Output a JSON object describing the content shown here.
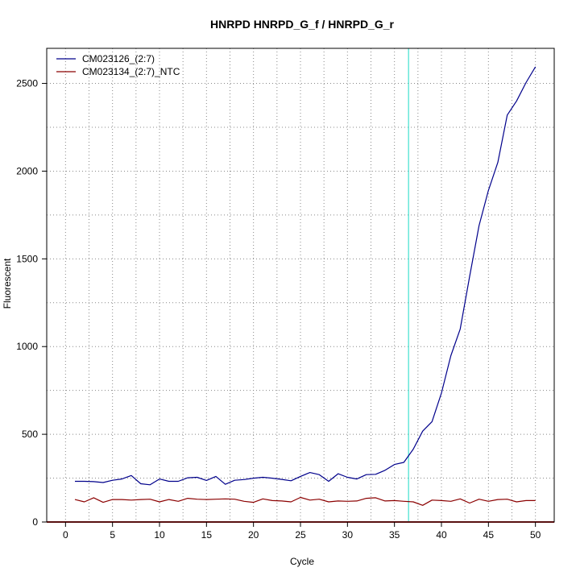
{
  "chart_data": {
    "type": "line",
    "title": "HNRPD  HNRPD_G_f / HNRPD_G_r",
    "xlabel": "Cycle",
    "ylabel": "Fluorescent",
    "xlim": [
      -2,
      52
    ],
    "ylim": [
      0,
      2700
    ],
    "x_ticks": [
      0,
      5,
      10,
      15,
      20,
      25,
      30,
      35,
      40,
      45,
      50
    ],
    "y_ticks": [
      0,
      500,
      1000,
      1500,
      2000,
      2500
    ],
    "x_grid": [
      0,
      2.5,
      5,
      7.5,
      10,
      12.5,
      15,
      17.5,
      20,
      22.5,
      25,
      27.5,
      30,
      32.5,
      35,
      37.5,
      40,
      42.5,
      45,
      47.5,
      50
    ],
    "y_grid": [
      250,
      500,
      750,
      1000,
      1250,
      1500,
      1750,
      2000,
      2250,
      2500
    ],
    "grid": true,
    "legend_position": "top-left",
    "threshold_cycle": 36.5,
    "baseline_value": 0,
    "colors": {
      "threshold": "#40e0d0",
      "baseline": "#b22222",
      "grid": "#888888"
    },
    "x": [
      1,
      2,
      3,
      4,
      5,
      6,
      7,
      8,
      9,
      10,
      11,
      12,
      13,
      14,
      15,
      16,
      17,
      18,
      19,
      20,
      21,
      22,
      23,
      24,
      25,
      26,
      27,
      28,
      29,
      30,
      31,
      32,
      33,
      34,
      35,
      36,
      37,
      38,
      39,
      40,
      41,
      42,
      43,
      44,
      45,
      46,
      47,
      48,
      49,
      50
    ],
    "series": [
      {
        "name": "CM023126_(2:7)",
        "color": "#00008b",
        "values": [
          232,
          232,
          230,
          225,
          238,
          245,
          265,
          218,
          212,
          245,
          232,
          232,
          252,
          255,
          237,
          260,
          215,
          238,
          242,
          250,
          255,
          250,
          243,
          235,
          260,
          282,
          270,
          232,
          275,
          255,
          245,
          270,
          272,
          295,
          328,
          340,
          415,
          518,
          572,
          735,
          948,
          1100,
          1400,
          1690,
          1890,
          2050,
          2320,
          2400,
          2505,
          2595
        ]
      },
      {
        "name": "CM023134_(2:7)_NTC",
        "color": "#8b0000",
        "values": [
          128,
          115,
          138,
          112,
          128,
          128,
          125,
          128,
          130,
          115,
          128,
          118,
          135,
          130,
          128,
          130,
          132,
          130,
          118,
          112,
          132,
          122,
          120,
          115,
          140,
          125,
          130,
          115,
          120,
          118,
          120,
          135,
          138,
          120,
          122,
          118,
          115,
          95,
          125,
          122,
          118,
          132,
          108,
          130,
          118,
          128,
          130,
          115,
          122,
          122
        ]
      }
    ]
  }
}
